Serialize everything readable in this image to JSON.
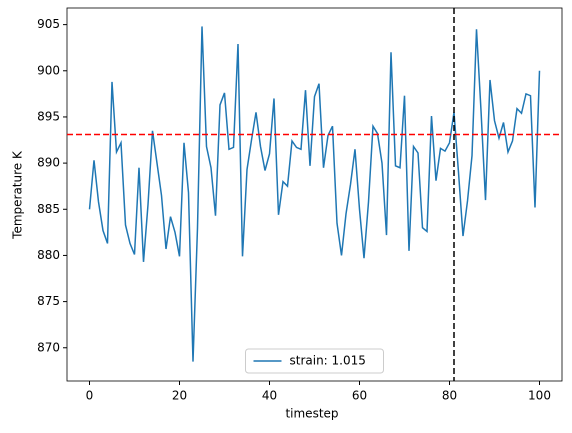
{
  "chart_data": {
    "type": "line",
    "xlabel": "timestep",
    "ylabel": "Temperature K",
    "x": [
      0,
      1,
      2,
      3,
      4,
      5,
      6,
      7,
      8,
      9,
      10,
      11,
      12,
      13,
      14,
      15,
      16,
      17,
      18,
      19,
      20,
      21,
      22,
      23,
      24,
      25,
      26,
      27,
      28,
      29,
      30,
      31,
      32,
      33,
      34,
      35,
      36,
      37,
      38,
      39,
      40,
      41,
      42,
      43,
      44,
      45,
      46,
      47,
      48,
      49,
      50,
      51,
      52,
      53,
      54,
      55,
      56,
      57,
      58,
      59,
      60,
      61,
      62,
      63,
      64,
      65,
      66,
      67,
      68,
      69,
      70,
      71,
      72,
      73,
      74,
      75,
      76,
      77,
      78,
      79,
      80,
      81,
      82,
      83,
      84,
      85,
      86,
      87,
      88,
      89,
      90,
      91,
      92,
      93,
      94,
      95,
      96,
      97,
      98,
      99,
      100
    ],
    "series": [
      {
        "name": "strain: 1.015",
        "color": "#1f77b4",
        "values": [
          885,
          890.3,
          885.8,
          882.7,
          881.3,
          898.8,
          891.2,
          892.2,
          883.3,
          881.3,
          880.1,
          889.5,
          879.3,
          885.5,
          893.5,
          890,
          886.5,
          880.7,
          884.2,
          882.5,
          879.9,
          892.2,
          886.8,
          868.5,
          883,
          904.8,
          891.8,
          889.5,
          884.3,
          896.3,
          897.6,
          891.5,
          891.7,
          902.9,
          879.9,
          889.3,
          892.5,
          895.5,
          891.8,
          889.2,
          891,
          897,
          884.4,
          888,
          887.5,
          892.4,
          891.7,
          891.5,
          897.9,
          889.7,
          897.2,
          898.6,
          889.5,
          893,
          894,
          883.5,
          880,
          884.5,
          887.7,
          891.5,
          885,
          879.7,
          885.8,
          894,
          893.2,
          890,
          882.2,
          902,
          889.7,
          889.5,
          897.3,
          880.5,
          891.8,
          891.1,
          883,
          882.6,
          895.1,
          888.1,
          891.6,
          891.3,
          892.2,
          895.5,
          889,
          882.1,
          885.9,
          890.8,
          904.5,
          895.7,
          886,
          899,
          894.6,
          892.7,
          894.4,
          891.2,
          892.4,
          895.9,
          895.4,
          897.5,
          897.3,
          885.2,
          900
        ]
      }
    ],
    "hlines": [
      {
        "value": 893.1,
        "color": "#ff0000"
      }
    ],
    "vlines": [
      {
        "value": 81,
        "color": "#000000"
      }
    ],
    "xlim": [
      -5,
      105
    ],
    "xticks": [
      0,
      20,
      40,
      60,
      80,
      100
    ],
    "ylim": [
      866.4,
      906.8
    ],
    "yticks": [
      870,
      875,
      880,
      885,
      890,
      895,
      900,
      905
    ],
    "legend": "lower center"
  }
}
